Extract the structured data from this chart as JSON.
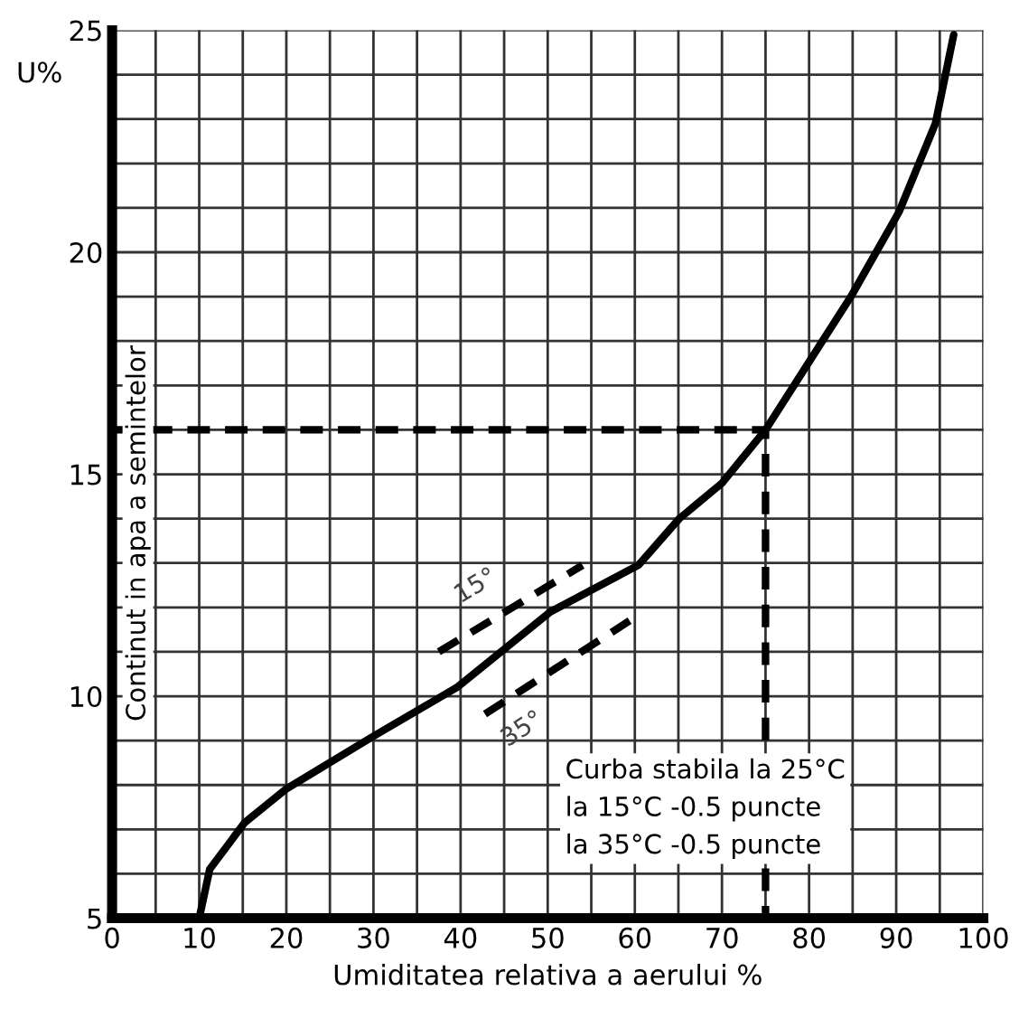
{
  "chart_data": {
    "type": "line",
    "xlabel": "Umiditatea relativa a aerului %",
    "ylabel": "Continut in apa a semintelor",
    "xlim": [
      0,
      100
    ],
    "ylim": [
      5,
      25
    ],
    "xticks": [
      0,
      {
        "value": 5,
        "label": null
      },
      10,
      {
        "value": 15,
        "label": null
      },
      20,
      {
        "value": 25,
        "label": null
      },
      30,
      {
        "value": 35,
        "label": null
      },
      40,
      {
        "value": 45,
        "label": null
      },
      50,
      {
        "value": 55,
        "label": null
      },
      60,
      {
        "value": 65,
        "label": null
      },
      70,
      {
        "value": 75,
        "label": null
      },
      80,
      {
        "value": 85,
        "label": null
      },
      90,
      {
        "value": 95,
        "label": null
      },
      100
    ],
    "yticks": [
      5,
      {
        "value": 6,
        "label": null
      },
      {
        "value": 7,
        "label": null
      },
      {
        "value": 8,
        "label": null
      },
      {
        "value": 9,
        "label": null
      },
      10,
      {
        "value": 11,
        "label": null
      },
      {
        "value": 12,
        "label": null
      },
      {
        "value": 13,
        "label": null
      },
      {
        "value": 14,
        "label": null
      },
      15,
      {
        "value": 16,
        "label": null
      },
      {
        "value": 17,
        "label": null
      },
      {
        "value": 18,
        "label": null
      },
      {
        "value": 19,
        "label": null
      },
      20,
      {
        "value": 21,
        "label": null
      },
      {
        "value": 22,
        "label": null
      },
      {
        "value": 23,
        "label": null
      },
      {
        "value": 24,
        "label": null
      },
      25
    ],
    "grid": true,
    "series": [
      {
        "color": "#000000",
        "line_style": "solid",
        "x": [
          10,
          11.2,
          15.2,
          19.9,
          30,
          39.6,
          50.3,
          60.4,
          65.1,
          70,
          75,
          84.8,
          90.3,
          94.5,
          96.6
        ],
        "values": [
          5,
          6.1,
          7.15,
          7.9,
          9.1,
          10.2,
          11.9,
          12.95,
          14.0,
          14.8,
          16,
          19.0,
          20.9,
          22.9,
          24.9
        ]
      },
      {
        "name": "15°",
        "color": "#000000",
        "line_style": "dashed",
        "x": [
          37.5,
          54
        ],
        "values": [
          11.0,
          12.95
        ]
      },
      {
        "name": "35°",
        "color": "#000000",
        "line_style": "dashed",
        "x": [
          42.8,
          59.4
        ],
        "values": [
          9.6,
          11.7
        ]
      },
      {
        "color": "#000000",
        "line_style": "dashed",
        "x": [
          0,
          75,
          75
        ],
        "values": [
          16,
          16,
          5
        ]
      }
    ],
    "annotations": [
      "U%",
      "Curba stabila la 25°C",
      "la 15°C -0.5 puncte",
      "la 35°C -0.5 puncte"
    ]
  }
}
